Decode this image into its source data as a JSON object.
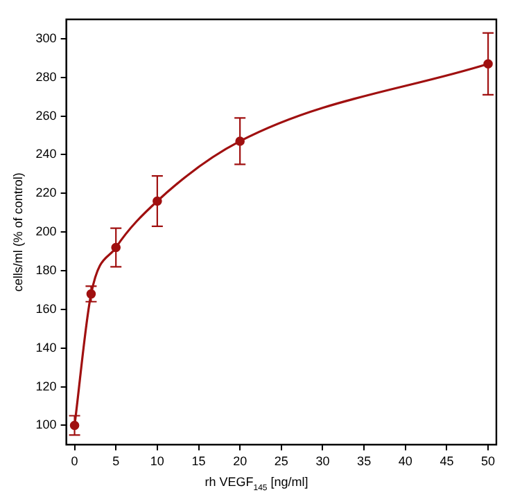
{
  "chart_data": {
    "type": "line",
    "xlabel": "rh VEGF$_{145}$ [ng/ml]",
    "ylabel": "cells/ml (% of control)",
    "x": [
      0,
      2,
      5,
      10,
      20,
      50
    ],
    "series": [
      {
        "color": "#a01010",
        "values": [
          100,
          168,
          192,
          216,
          247,
          287
        ],
        "errors": [
          5,
          4,
          10,
          13,
          12,
          16
        ]
      }
    ],
    "xlim": [
      -1,
      51
    ],
    "xticks": [
      0,
      5,
      10,
      15,
      20,
      25,
      30,
      35,
      40,
      45,
      50
    ],
    "ylim": [
      90,
      310
    ],
    "yticks": [
      100,
      120,
      140,
      160,
      180,
      200,
      220,
      240,
      260,
      280,
      300
    ],
    "grid": false,
    "legend": false,
    "marker": "circle",
    "line_style": "solid"
  }
}
